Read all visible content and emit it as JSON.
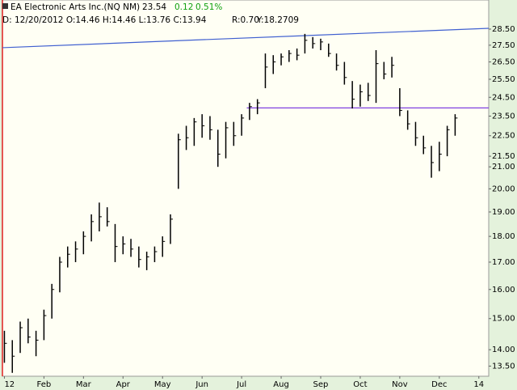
{
  "chart_data": {
    "type": "ohlc",
    "title": "EA Electronic Arts Inc.(NQ NM)",
    "last": "23.54",
    "change": "0.12",
    "change_pct": "0.51%",
    "info": "D: 12/20/2012 O:14.46 H:14.46 L:13.76 C:13.94",
    "r_info": "R:0.70",
    "y_info": "Y:18.2709",
    "color": "#000000",
    "up_color": "#00a000",
    "log_scale": true,
    "x": [
      0.0,
      0.2,
      0.4,
      0.6,
      0.8,
      1.0,
      1.2,
      1.4,
      1.6,
      1.8,
      2.0,
      2.2,
      2.4,
      2.6,
      2.8,
      3.0,
      3.2,
      3.4,
      3.6,
      3.8,
      4.0,
      4.2,
      4.4,
      4.6,
      4.8,
      5.0,
      5.2,
      5.4,
      5.6,
      5.8,
      6.0,
      6.2,
      6.4,
      6.6,
      6.8,
      7.0,
      7.2,
      7.4,
      7.6,
      7.8,
      8.0,
      8.2,
      8.4,
      8.6,
      8.8,
      9.0,
      9.2,
      9.4,
      9.6,
      9.8,
      10.0,
      10.2,
      10.4,
      10.6,
      10.8,
      11.0,
      11.2,
      11.4
    ],
    "low": [
      13.6,
      13.3,
      13.9,
      14.2,
      13.8,
      14.3,
      15.0,
      15.9,
      16.8,
      17.0,
      17.3,
      17.8,
      18.2,
      18.4,
      17.0,
      17.3,
      17.2,
      16.8,
      16.7,
      17.0,
      17.2,
      17.7,
      20.0,
      21.8,
      22.0,
      22.4,
      22.3,
      21.0,
      21.4,
      22.0,
      22.5,
      23.3,
      23.6,
      25.0,
      25.8,
      26.3,
      26.5,
      26.6,
      27.0,
      27.3,
      27.2,
      26.8,
      26.0,
      25.2,
      23.9,
      24.0,
      24.3,
      24.2,
      25.5,
      25.6,
      23.5,
      22.8,
      22.0,
      21.6,
      20.5,
      20.8,
      21.5,
      22.5
    ],
    "high": [
      14.6,
      14.3,
      14.9,
      15.0,
      14.6,
      15.3,
      16.2,
      17.2,
      17.6,
      17.8,
      18.2,
      18.9,
      19.4,
      19.2,
      18.5,
      18.0,
      17.9,
      17.6,
      17.4,
      17.6,
      18.0,
      18.9,
      22.6,
      23.0,
      23.4,
      23.6,
      23.5,
      22.8,
      23.2,
      23.2,
      23.6,
      24.2,
      24.4,
      27.0,
      26.9,
      27.0,
      27.2,
      27.3,
      28.2,
      28.0,
      27.9,
      27.6,
      27.0,
      26.5,
      25.4,
      25.2,
      25.3,
      27.2,
      26.5,
      26.8,
      25.0,
      23.8,
      23.2,
      22.5,
      22.0,
      22.2,
      23.0,
      23.6
    ],
    "close": [
      14.2,
      13.8,
      14.7,
      14.4,
      14.3,
      15.1,
      16.0,
      17.0,
      17.3,
      17.5,
      18.0,
      18.6,
      18.8,
      18.6,
      17.6,
      17.7,
      17.5,
      17.1,
      17.2,
      17.4,
      17.8,
      18.7,
      22.3,
      22.4,
      23.2,
      23.0,
      22.8,
      21.6,
      22.9,
      22.5,
      23.4,
      24.0,
      24.2,
      26.2,
      26.5,
      26.8,
      27.0,
      26.9,
      27.8,
      27.6,
      27.7,
      27.0,
      26.3,
      25.6,
      24.4,
      24.8,
      24.6,
      26.4,
      25.8,
      26.3,
      23.8,
      23.1,
      22.4,
      21.9,
      21.2,
      21.6,
      22.8,
      23.4
    ],
    "trendlines": [
      {
        "color": "#4060d0",
        "x": [
          -0.05,
          12.25
        ],
        "values": [
          27.35,
          28.55
        ]
      },
      {
        "color": "#8040e0",
        "x": [
          6.13,
          12.25
        ],
        "values": [
          23.93,
          23.93
        ]
      }
    ],
    "xlim": [
      -0.05,
      12.25
    ],
    "xticks": [
      {
        "value": 0,
        "label": "12"
      },
      {
        "value": 1,
        "label": "Feb"
      },
      {
        "value": 2,
        "label": "Mar"
      },
      {
        "value": 3,
        "label": "Apr"
      },
      {
        "value": 4,
        "label": "May"
      },
      {
        "value": 5,
        "label": "Jun"
      },
      {
        "value": 6,
        "label": "Jul"
      },
      {
        "value": 7,
        "label": "Aug"
      },
      {
        "value": 8,
        "label": "Sep"
      },
      {
        "value": 9,
        "label": "Oct"
      },
      {
        "value": 10,
        "label": "Nov"
      },
      {
        "value": 11,
        "label": "Dec"
      },
      {
        "value": 12,
        "label": "14"
      }
    ],
    "ylim": [
      13.2,
      30.4
    ],
    "yticks": [
      {
        "value": 13.5,
        "label": "13.50"
      },
      {
        "value": 14,
        "label": "14.00"
      },
      {
        "value": 15,
        "label": "15.00"
      },
      {
        "value": 16,
        "label": "16.00"
      },
      {
        "value": 17,
        "label": "17.00"
      },
      {
        "value": 18,
        "label": "18.00"
      },
      {
        "value": 19,
        "label": "19.00"
      },
      {
        "value": 20,
        "label": "20.00"
      },
      {
        "value": 21,
        "label": "21.00"
      },
      {
        "value": 21.5,
        "label": "21.50"
      },
      {
        "value": 22.5,
        "label": "22.50"
      },
      {
        "value": 23.5,
        "label": "23.50"
      },
      {
        "value": 24.5,
        "label": "24.50"
      },
      {
        "value": 25.5,
        "label": "25.50"
      },
      {
        "value": 26.5,
        "label": "26.50"
      },
      {
        "value": 27.5,
        "label": "27.50"
      },
      {
        "value": 28.5,
        "label": "28.50"
      }
    ]
  }
}
